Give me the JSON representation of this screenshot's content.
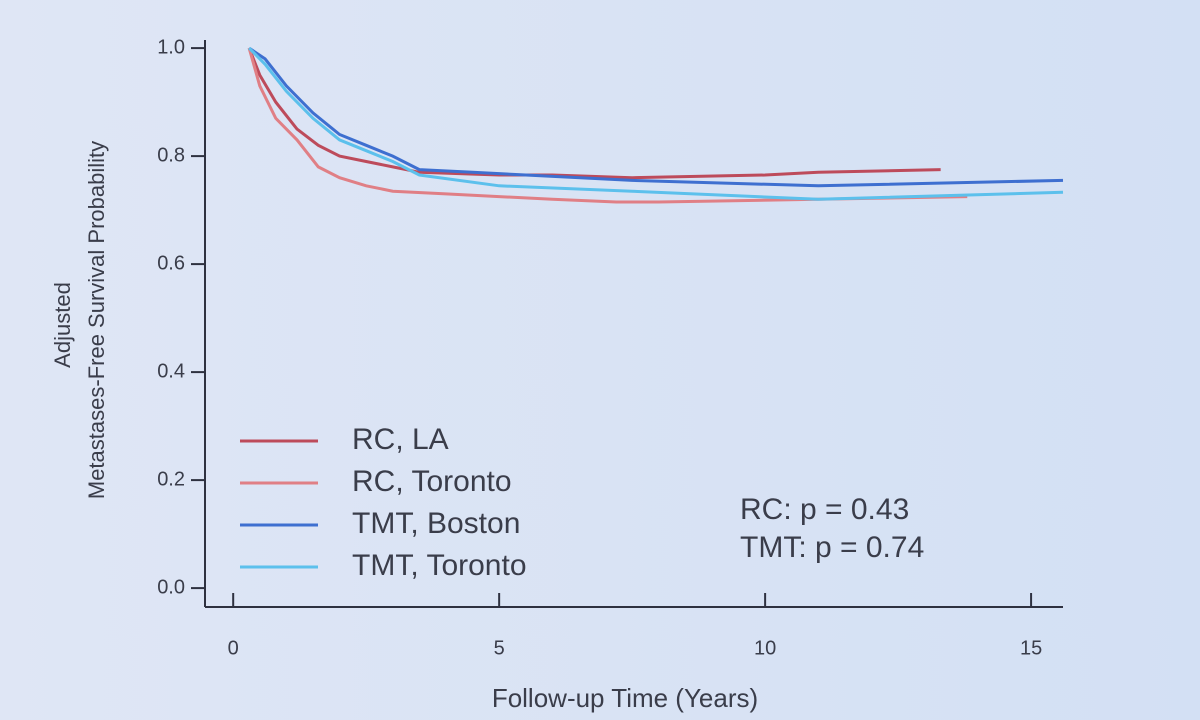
{
  "chart_data": {
    "type": "line",
    "ylabel": [
      "Adjusted",
      "Metastases-Free Survival Probability"
    ],
    "xlabel": "Follow-up Time (Years)",
    "xlim": [
      -0.53,
      15.6
    ],
    "xticks": [
      0,
      5,
      10,
      15
    ],
    "ylim": [
      -0.035,
      1.015
    ],
    "yticks": [
      {
        "value": 0,
        "label": "0.0"
      },
      0.2,
      0.4,
      0.6,
      0.8,
      {
        "value": 1,
        "label": "1.0"
      }
    ],
    "legend": "lower left",
    "annotations": [
      "RC:  p = 0.43",
      "TMT: p = 0.74"
    ],
    "series": [
      {
        "name": "RC, LA",
        "color": "#bd4b5b",
        "x": [
          0.3,
          0.5,
          0.8,
          1.2,
          1.6,
          2,
          2.5,
          3,
          3.5,
          5,
          6,
          7.5,
          10,
          11,
          13.3
        ],
        "values": [
          1.0,
          0.95,
          0.9,
          0.85,
          0.82,
          0.8,
          0.79,
          0.78,
          0.77,
          0.765,
          0.765,
          0.76,
          0.765,
          0.77,
          0.775
        ]
      },
      {
        "name": "RC, Toronto",
        "color": "#e07f85",
        "x": [
          0.3,
          0.5,
          0.8,
          1.2,
          1.6,
          2,
          2.5,
          3,
          4,
          5,
          6,
          7.2,
          8,
          11,
          13.8
        ],
        "values": [
          1.0,
          0.93,
          0.87,
          0.83,
          0.78,
          0.76,
          0.745,
          0.735,
          0.73,
          0.725,
          0.72,
          0.715,
          0.715,
          0.72,
          0.725
        ]
      },
      {
        "name": "TMT, Boston",
        "color": "#3e6fd0",
        "x": [
          0.3,
          0.6,
          1,
          1.5,
          2,
          2.5,
          3,
          3.5,
          4.5,
          5.5,
          7.5,
          11,
          15.6
        ],
        "values": [
          1.0,
          0.98,
          0.93,
          0.88,
          0.84,
          0.82,
          0.8,
          0.775,
          0.77,
          0.765,
          0.755,
          0.745,
          0.755
        ]
      },
      {
        "name": "TMT, Toronto",
        "color": "#5cc0ec",
        "x": [
          0.3,
          0.6,
          1,
          1.5,
          2,
          2.5,
          3,
          3.5,
          5,
          7.5,
          11,
          15.6
        ],
        "values": [
          1.0,
          0.97,
          0.92,
          0.87,
          0.83,
          0.81,
          0.79,
          0.765,
          0.745,
          0.735,
          0.72,
          0.733
        ]
      }
    ]
  }
}
